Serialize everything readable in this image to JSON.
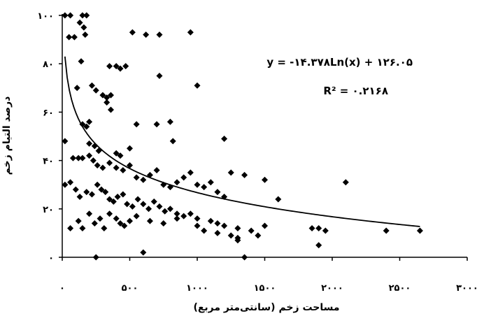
{
  "chart_data": {
    "type": "scatter",
    "title": "",
    "xlabel": "مساحت زخم (سانتی‌متر مربع)",
    "ylabel": "درصد التیام زخم",
    "xlim": [
      0,
      3000
    ],
    "ylim": [
      0,
      100
    ],
    "x_tick_values": [
      0,
      500,
      1000,
      1500,
      2000,
      2500,
      3000
    ],
    "y_tick_values": [
      0,
      20,
      40,
      60,
      80,
      100
    ],
    "x_tick_labels": [
      "۰",
      "۵۰۰",
      "۱۰۰۰",
      "۱۵۰۰",
      "۲۰۰۰",
      "۲۵۰۰",
      "۳۰۰۰"
    ],
    "y_tick_labels": [
      "۰",
      "۲۰",
      "۴۰",
      "۶۰",
      "۸۰",
      "۱۰۰"
    ],
    "equation_label": "y = -۱۴.۳۷۸Ln(x) + ۱۲۶.۰۵",
    "r2_label": "R² = ۰.۲۱۶۸",
    "marker": "diamond",
    "marker_color": "#000000",
    "trendline": {
      "kind": "logarithmic",
      "a": -14.378,
      "b": 126.05,
      "x_range": [
        20,
        2650
      ],
      "color": "#000000"
    },
    "grid": false,
    "points": [
      [
        20,
        100
      ],
      [
        60,
        100
      ],
      [
        150,
        100
      ],
      [
        180,
        100
      ],
      [
        130,
        97
      ],
      [
        50,
        91
      ],
      [
        90,
        91
      ],
      [
        160,
        95
      ],
      [
        170,
        92
      ],
      [
        140,
        81
      ],
      [
        220,
        71
      ],
      [
        110,
        70
      ],
      [
        250,
        69
      ],
      [
        350,
        79
      ],
      [
        400,
        79
      ],
      [
        430,
        78
      ],
      [
        470,
        79
      ],
      [
        720,
        75
      ],
      [
        1000,
        71
      ],
      [
        520,
        93
      ],
      [
        620,
        92
      ],
      [
        720,
        92
      ],
      [
        950,
        93
      ],
      [
        300,
        67
      ],
      [
        330,
        66
      ],
      [
        360,
        67
      ],
      [
        330,
        64
      ],
      [
        360,
        61
      ],
      [
        200,
        56
      ],
      [
        150,
        55
      ],
      [
        180,
        54
      ],
      [
        550,
        55
      ],
      [
        700,
        55
      ],
      [
        800,
        56
      ],
      [
        20,
        48
      ],
      [
        200,
        47
      ],
      [
        240,
        46
      ],
      [
        270,
        44
      ],
      [
        400,
        43
      ],
      [
        430,
        42
      ],
      [
        500,
        45
      ],
      [
        820,
        48
      ],
      [
        1200,
        49
      ],
      [
        80,
        41
      ],
      [
        120,
        41
      ],
      [
        150,
        41
      ],
      [
        200,
        42
      ],
      [
        230,
        40
      ],
      [
        260,
        38
      ],
      [
        300,
        37
      ],
      [
        350,
        39
      ],
      [
        400,
        37
      ],
      [
        450,
        36
      ],
      [
        500,
        38
      ],
      [
        550,
        33
      ],
      [
        600,
        32
      ],
      [
        650,
        34
      ],
      [
        700,
        36
      ],
      [
        750,
        30
      ],
      [
        800,
        29
      ],
      [
        850,
        31
      ],
      [
        900,
        33
      ],
      [
        950,
        35
      ],
      [
        1000,
        30
      ],
      [
        1050,
        29
      ],
      [
        1100,
        31
      ],
      [
        1150,
        27
      ],
      [
        1200,
        25
      ],
      [
        1250,
        35
      ],
      [
        1350,
        34
      ],
      [
        1500,
        32
      ],
      [
        20,
        30
      ],
      [
        60,
        31
      ],
      [
        100,
        28
      ],
      [
        130,
        25
      ],
      [
        180,
        27
      ],
      [
        220,
        26
      ],
      [
        260,
        30
      ],
      [
        290,
        28
      ],
      [
        320,
        27
      ],
      [
        350,
        24
      ],
      [
        380,
        23
      ],
      [
        410,
        25
      ],
      [
        450,
        26
      ],
      [
        480,
        22
      ],
      [
        520,
        21
      ],
      [
        560,
        24
      ],
      [
        600,
        22
      ],
      [
        640,
        20
      ],
      [
        680,
        23
      ],
      [
        720,
        21
      ],
      [
        760,
        19
      ],
      [
        800,
        20
      ],
      [
        850,
        18
      ],
      [
        900,
        17
      ],
      [
        950,
        18
      ],
      [
        1000,
        16
      ],
      [
        1100,
        15
      ],
      [
        1150,
        14
      ],
      [
        1200,
        13
      ],
      [
        1300,
        12
      ],
      [
        1400,
        11
      ],
      [
        1500,
        13
      ],
      [
        1600,
        24
      ],
      [
        1850,
        12
      ],
      [
        2100,
        31
      ],
      [
        2400,
        11
      ],
      [
        2650,
        11
      ],
      [
        60,
        12
      ],
      [
        120,
        15
      ],
      [
        150,
        12
      ],
      [
        200,
        18
      ],
      [
        240,
        14
      ],
      [
        280,
        16
      ],
      [
        310,
        12
      ],
      [
        350,
        18
      ],
      [
        400,
        16
      ],
      [
        430,
        14
      ],
      [
        460,
        13
      ],
      [
        500,
        15
      ],
      [
        550,
        17
      ],
      [
        650,
        15
      ],
      [
        750,
        14
      ],
      [
        850,
        16
      ],
      [
        1000,
        13
      ],
      [
        1050,
        11
      ],
      [
        1150,
        10
      ],
      [
        1250,
        9
      ],
      [
        1300,
        8
      ],
      [
        1450,
        9
      ],
      [
        1900,
        12
      ],
      [
        1950,
        11
      ],
      [
        1900,
        5
      ],
      [
        1300,
        7
      ],
      [
        250,
        0
      ],
      [
        600,
        2
      ],
      [
        1350,
        0
      ]
    ]
  }
}
